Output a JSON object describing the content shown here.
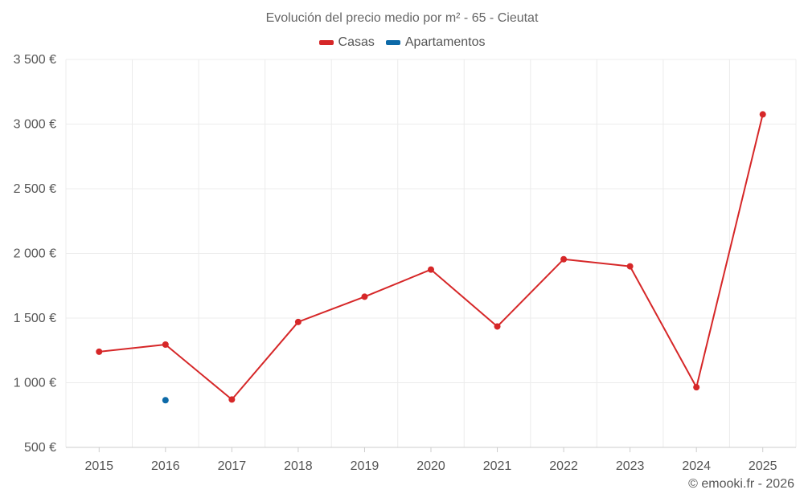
{
  "chart_data": {
    "type": "line",
    "title": "Evolución del precio medio por m² - 65 - Cieutat",
    "xlabel": "",
    "ylabel": "",
    "categories": [
      "2015",
      "2016",
      "2017",
      "2018",
      "2019",
      "2020",
      "2021",
      "2022",
      "2023",
      "2024",
      "2025"
    ],
    "ylim": [
      500,
      3500
    ],
    "yticks": [
      500,
      1000,
      1500,
      2000,
      2500,
      3000,
      3500
    ],
    "ytick_labels": [
      "500 €",
      "1 000 €",
      "1 500 €",
      "2 000 €",
      "2 500 €",
      "3 000 €",
      "3 500 €"
    ],
    "grid": true,
    "legend_position": "top-center",
    "series": [
      {
        "name": "Casas",
        "color": "#d62728",
        "values": [
          1240,
          1295,
          870,
          1470,
          1665,
          1875,
          1435,
          1955,
          1900,
          965,
          3075
        ]
      },
      {
        "name": "Apartamentos",
        "color": "#0d6aa8",
        "values": [
          null,
          865,
          null,
          null,
          null,
          null,
          null,
          null,
          null,
          null,
          null
        ]
      }
    ]
  },
  "credit": "© emooki.fr - 2026"
}
